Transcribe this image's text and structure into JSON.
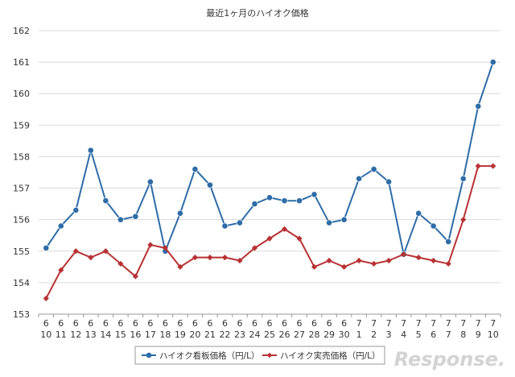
{
  "chart_data": {
    "type": "line",
    "title": "最近1ヶ月のハイオク価格",
    "xlabel": "",
    "ylabel": "",
    "ylim": [
      153,
      162
    ],
    "yticks": [
      153,
      154,
      155,
      156,
      157,
      158,
      159,
      160,
      161,
      162
    ],
    "grid": true,
    "legend_position": "bottom-left",
    "categories": [
      [
        "6",
        "10"
      ],
      [
        "6",
        "11"
      ],
      [
        "6",
        "12"
      ],
      [
        "6",
        "13"
      ],
      [
        "6",
        "14"
      ],
      [
        "6",
        "15"
      ],
      [
        "6",
        "16"
      ],
      [
        "6",
        "17"
      ],
      [
        "6",
        "18"
      ],
      [
        "6",
        "19"
      ],
      [
        "6",
        "20"
      ],
      [
        "6",
        "21"
      ],
      [
        "6",
        "22"
      ],
      [
        "6",
        "23"
      ],
      [
        "6",
        "24"
      ],
      [
        "6",
        "25"
      ],
      [
        "6",
        "26"
      ],
      [
        "6",
        "27"
      ],
      [
        "6",
        "28"
      ],
      [
        "6",
        "29"
      ],
      [
        "6",
        "30"
      ],
      [
        "7",
        "1"
      ],
      [
        "7",
        "2"
      ],
      [
        "7",
        "3"
      ],
      [
        "7",
        "4"
      ],
      [
        "7",
        "5"
      ],
      [
        "7",
        "6"
      ],
      [
        "7",
        "7"
      ],
      [
        "7",
        "8"
      ],
      [
        "7",
        "9"
      ],
      [
        "7",
        "10"
      ]
    ],
    "series": [
      {
        "name": "ハイオク看板価格（円/L）",
        "color": "#2e6ca7",
        "marker": "circle",
        "values": [
          155.1,
          155.8,
          156.3,
          158.2,
          156.6,
          156.0,
          156.1,
          157.2,
          155.0,
          156.2,
          157.6,
          157.1,
          155.8,
          155.9,
          156.5,
          156.7,
          156.6,
          156.6,
          156.8,
          155.9,
          156.0,
          157.3,
          157.6,
          157.2,
          154.9,
          156.2,
          155.8,
          155.3,
          157.3,
          159.6,
          161.0
        ]
      },
      {
        "name": "ハイオク実売価格（円/L）",
        "color": "#b83234",
        "marker": "diamond",
        "values": [
          153.5,
          154.4,
          155.0,
          154.8,
          155.0,
          154.6,
          154.2,
          155.2,
          155.1,
          154.5,
          154.8,
          154.8,
          154.8,
          154.7,
          155.1,
          155.4,
          155.7,
          155.4,
          154.5,
          154.7,
          154.5,
          154.7,
          154.6,
          154.7,
          154.9,
          154.8,
          154.7,
          154.6,
          156.0,
          157.7,
          157.7
        ]
      }
    ]
  },
  "watermark": "Response."
}
